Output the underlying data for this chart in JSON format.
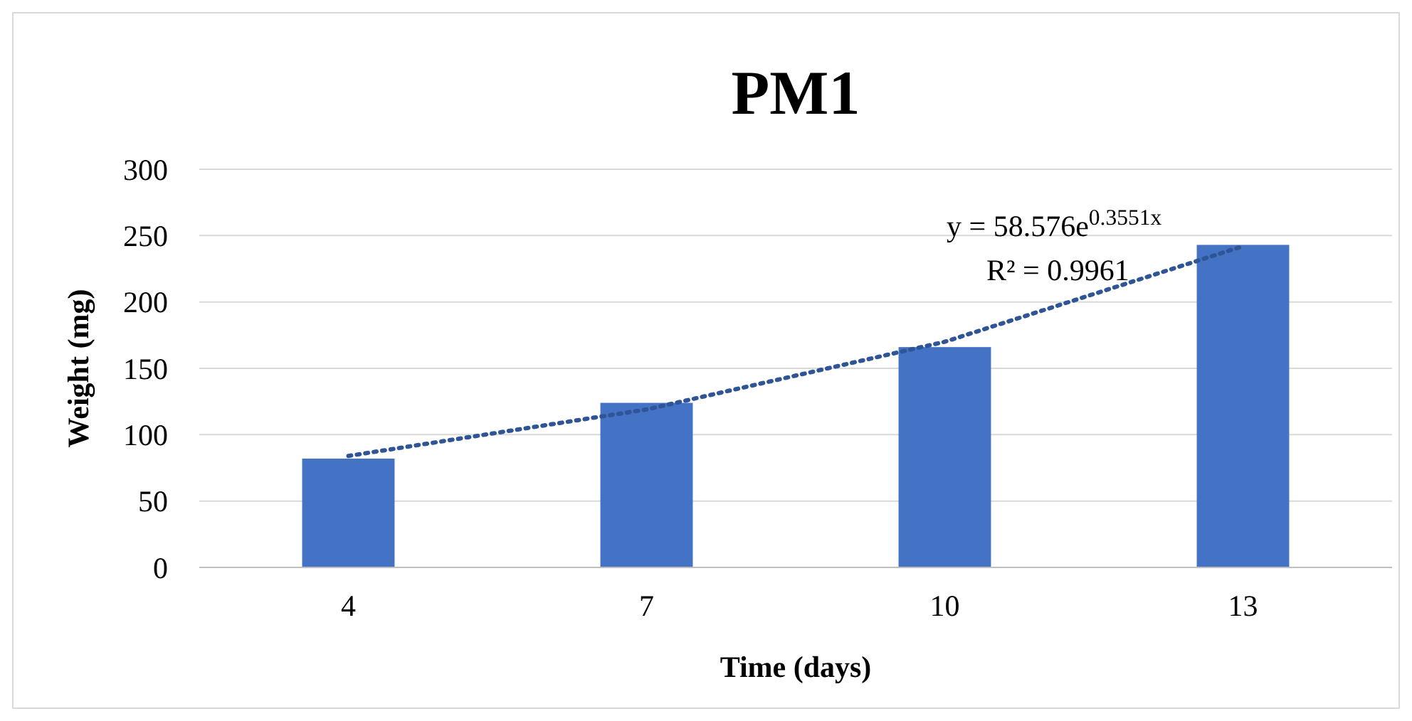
{
  "chart_data": {
    "type": "bar",
    "title": "PM1",
    "xlabel": "Time (days)",
    "ylabel": "Weight (mg)",
    "categories": [
      "4",
      "7",
      "10",
      "13"
    ],
    "series": [
      {
        "color": "#4472c4",
        "values": [
          82,
          124,
          166,
          243
        ]
      },
      {
        "type": "line",
        "color": "#2f5597",
        "line_style": "dotted",
        "values": [
          84,
          119,
          170,
          242
        ]
      }
    ],
    "ylim": [
      0,
      300
    ],
    "yticks": [
      0,
      50,
      100,
      150,
      200,
      250,
      300
    ],
    "grid": "y",
    "annotations": [
      "y = 58.576e$^{0.3551x}$",
      "R² = 0.9961"
    ]
  }
}
